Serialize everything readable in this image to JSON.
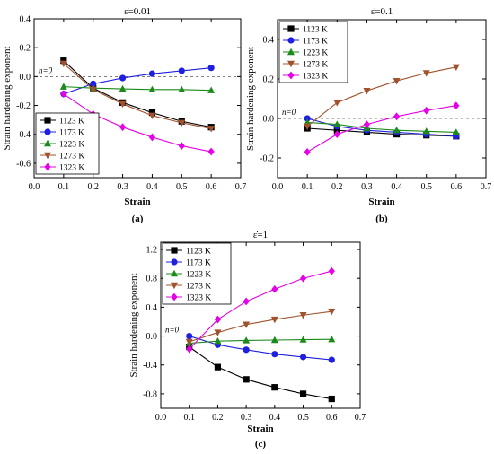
{
  "figure": {
    "colors": {
      "1123 K": "#000000",
      "1173 K": "#1f1fe0",
      "1223 K": "#1a8a1a",
      "1273 K": "#a0522d",
      "1323 K": "#e600e6"
    },
    "markers": {
      "1123 K": "square",
      "1173 K": "circle",
      "1223 K": "triangle-up",
      "1273 K": "triangle-down",
      "1323 K": "diamond"
    }
  },
  "chart_data": [
    {
      "panel_label": "(a)",
      "type": "line",
      "title": "ε̇=0.01",
      "xlabel": "Strain",
      "ylabel": "Strain hardening exponent",
      "xlim": [
        0.0,
        0.7
      ],
      "ylim": [
        -0.7,
        0.4
      ],
      "xticks": [
        0.0,
        0.1,
        0.2,
        0.3,
        0.4,
        0.5,
        0.6,
        0.7
      ],
      "yticks": [
        -0.6,
        -0.4,
        -0.2,
        0.0,
        0.2,
        0.4
      ],
      "annotation": "n=0",
      "legend": "bottom-left",
      "x": [
        0.1,
        0.2,
        0.3,
        0.4,
        0.5,
        0.6
      ],
      "series": [
        {
          "name": "1123 K",
          "values": [
            0.11,
            -0.08,
            -0.18,
            -0.25,
            -0.31,
            -0.35
          ]
        },
        {
          "name": "1173 K",
          "values": [
            -0.12,
            -0.05,
            -0.01,
            0.02,
            0.04,
            0.06
          ]
        },
        {
          "name": "1223 K",
          "values": [
            -0.07,
            -0.08,
            -0.085,
            -0.09,
            -0.09,
            -0.095
          ]
        },
        {
          "name": "1273 K",
          "values": [
            0.09,
            -0.09,
            -0.19,
            -0.27,
            -0.32,
            -0.36
          ]
        },
        {
          "name": "1323 K",
          "values": [
            -0.12,
            -0.26,
            -0.35,
            -0.42,
            -0.48,
            -0.52
          ]
        }
      ]
    },
    {
      "panel_label": "(b)",
      "type": "line",
      "title": "ε̇=0.1",
      "xlabel": "Strain",
      "ylabel": "Strain hardening exponent",
      "xlim": [
        0.0,
        0.7
      ],
      "ylim": [
        -0.3,
        0.5
      ],
      "xticks": [
        0.0,
        0.1,
        0.2,
        0.3,
        0.4,
        0.5,
        0.6,
        0.7
      ],
      "yticks": [
        -0.2,
        0.0,
        0.2,
        0.4
      ],
      "annotation": "n=0",
      "legend": "top-left",
      "x": [
        0.1,
        0.2,
        0.3,
        0.4,
        0.5,
        0.6
      ],
      "series": [
        {
          "name": "1123 K",
          "values": [
            -0.05,
            -0.06,
            -0.07,
            -0.08,
            -0.085,
            -0.09
          ]
        },
        {
          "name": "1173 K",
          "values": [
            0.0,
            -0.04,
            -0.06,
            -0.07,
            -0.08,
            -0.09
          ]
        },
        {
          "name": "1223 K",
          "values": [
            -0.02,
            -0.03,
            -0.05,
            -0.06,
            -0.065,
            -0.07
          ]
        },
        {
          "name": "1273 K",
          "values": [
            -0.04,
            0.08,
            0.14,
            0.19,
            0.23,
            0.26
          ]
        },
        {
          "name": "1323 K",
          "values": [
            -0.17,
            -0.08,
            -0.03,
            0.01,
            0.04,
            0.065
          ]
        }
      ]
    },
    {
      "panel_label": "(c)",
      "type": "line",
      "title": "ε̇=1",
      "xlabel": "Strain",
      "ylabel": "Strain hardening exponent",
      "xlim": [
        0.0,
        0.7
      ],
      "ylim": [
        -1.0,
        1.3
      ],
      "xticks": [
        0.0,
        0.1,
        0.2,
        0.3,
        0.4,
        0.5,
        0.6,
        0.7
      ],
      "yticks": [
        -0.8,
        -0.4,
        0.0,
        0.4,
        0.8,
        1.2
      ],
      "annotation": "n=0",
      "legend": "top-left",
      "x": [
        0.1,
        0.2,
        0.3,
        0.4,
        0.5,
        0.6
      ],
      "series": [
        {
          "name": "1123 K",
          "values": [
            -0.15,
            -0.43,
            -0.6,
            -0.71,
            -0.8,
            -0.87
          ]
        },
        {
          "name": "1173 K",
          "values": [
            0.0,
            -0.12,
            -0.19,
            -0.25,
            -0.29,
            -0.33
          ]
        },
        {
          "name": "1223 K",
          "values": [
            -0.1,
            -0.07,
            -0.06,
            -0.055,
            -0.05,
            -0.045
          ]
        },
        {
          "name": "1273 K",
          "values": [
            -0.08,
            0.05,
            0.16,
            0.23,
            0.29,
            0.34
          ]
        },
        {
          "name": "1323 K",
          "values": [
            -0.18,
            0.23,
            0.48,
            0.65,
            0.8,
            0.9
          ]
        }
      ]
    }
  ]
}
